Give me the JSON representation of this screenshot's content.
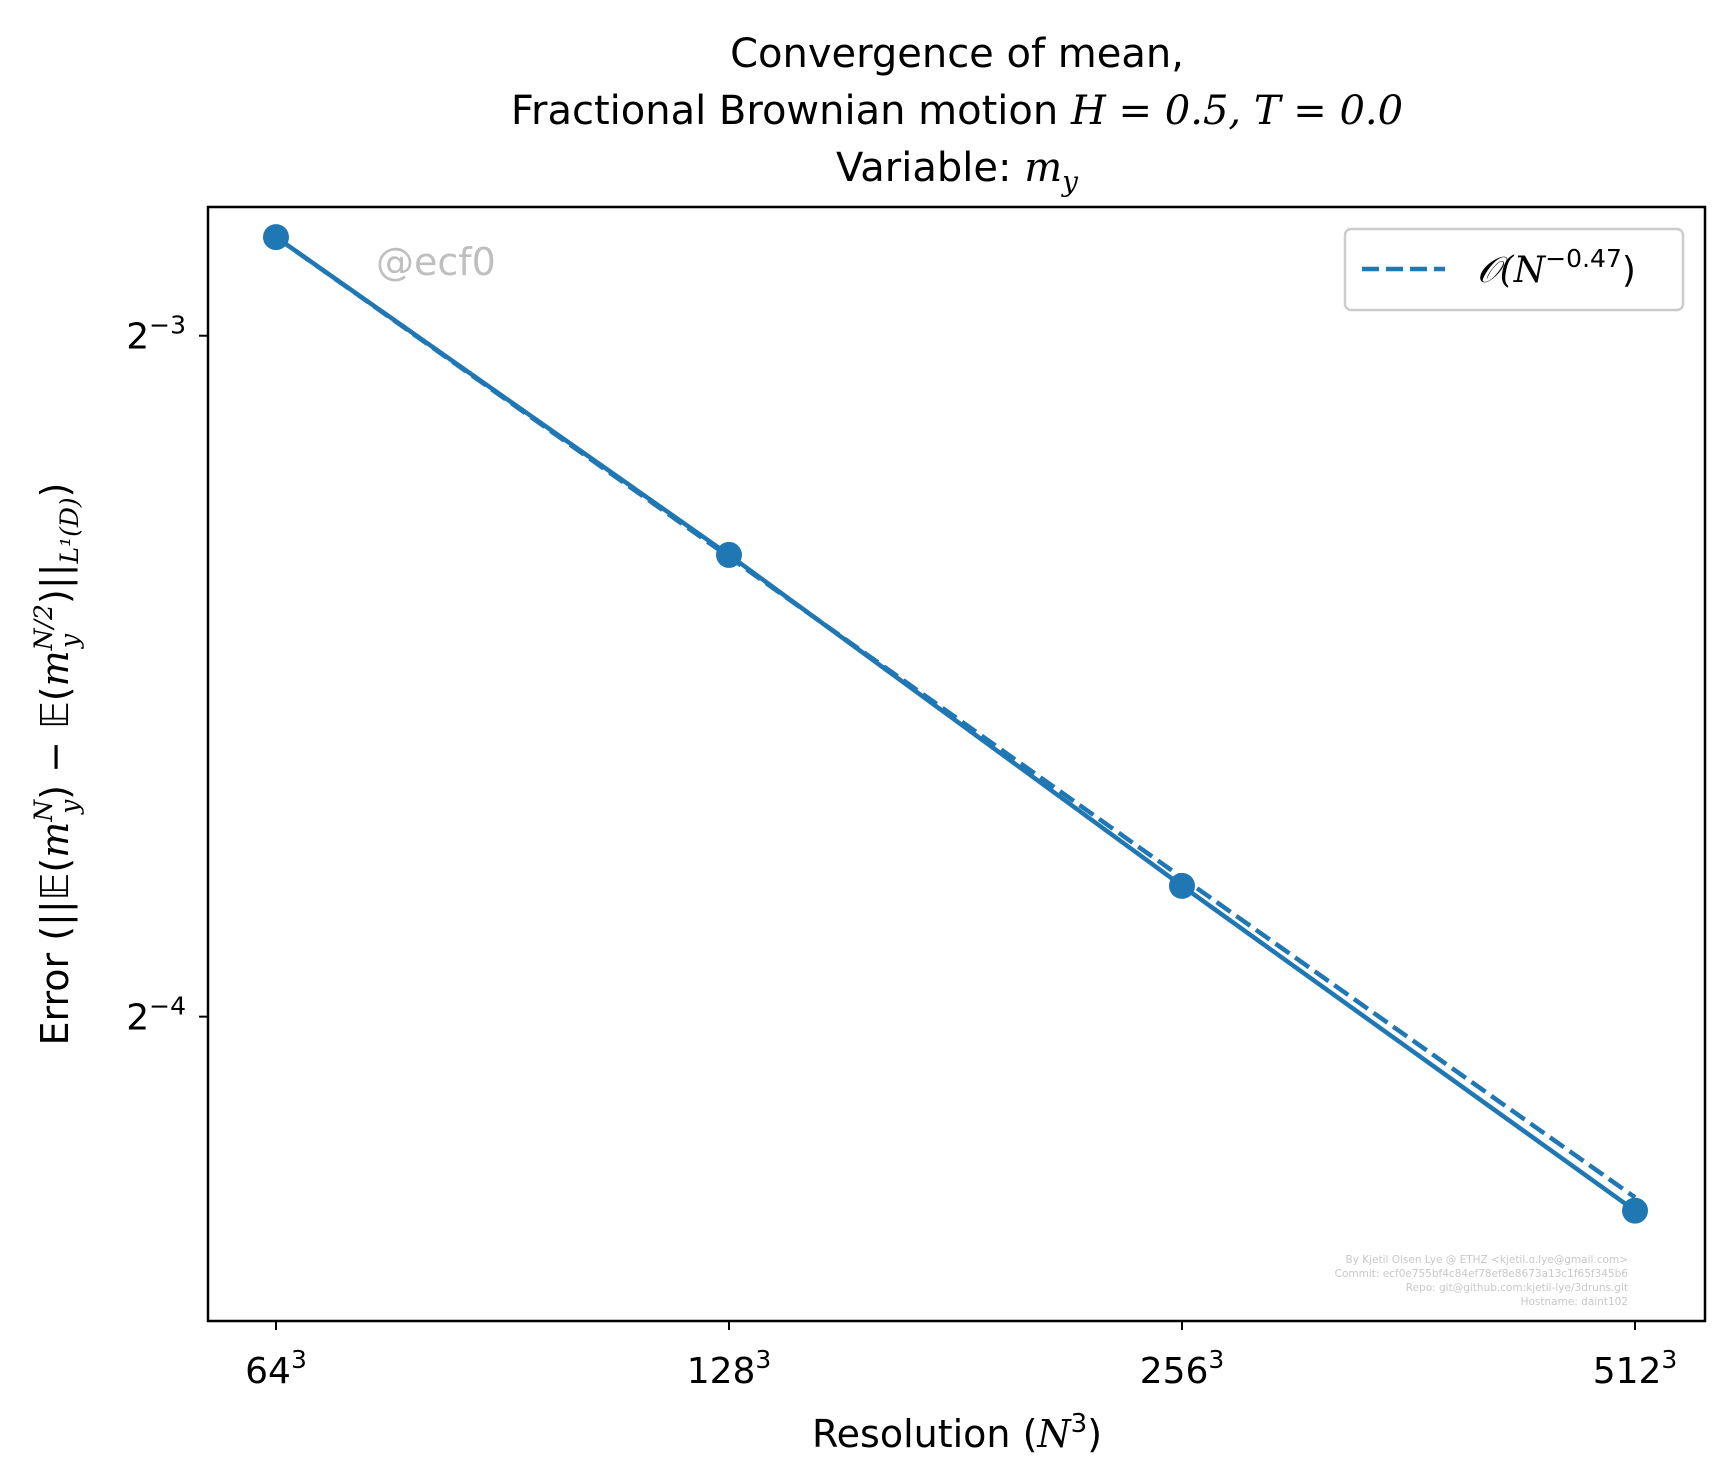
{
  "chart_data": {
    "type": "line",
    "title": {
      "line1": "Convergence of mean,",
      "line2_prefix": "Fractional Brownian motion ",
      "line2_math": "H = 0.5, T = 0.0",
      "line3_prefix": "Variable: ",
      "line3_math": "m",
      "line3_sub": "y"
    },
    "xlabel": {
      "prefix": "Resolution (",
      "var": "N",
      "sup": "3",
      "suffix": ")"
    },
    "ylabel": {
      "prefix": "Error (||",
      "bb": "𝔼",
      "open": "(",
      "m": "m",
      "sub": "y",
      "supN": "N",
      "mid": ") − ",
      "supN2": "N/2",
      "close": ")||",
      "norm_sub": "L¹(D)",
      "suffix": ")"
    },
    "x": [
      64,
      128,
      256,
      512
    ],
    "xscale": "log2",
    "x_tick_labels": [
      {
        "base": "64",
        "sup": "3"
      },
      {
        "base": "128",
        "sup": "3"
      },
      {
        "base": "256",
        "sup": "3"
      },
      {
        "base": "512",
        "sup": "3"
      }
    ],
    "yscale": "log2",
    "y_ticks": [
      {
        "value": 0.125,
        "base": "2",
        "sup": "−3"
      },
      {
        "value": 0.0625,
        "base": "2",
        "sup": "−4"
      }
    ],
    "ylim": [
      0.04585,
      0.1425
    ],
    "series": [
      {
        "name": "",
        "style": "solid",
        "marker": "circle",
        "values": [
          0.1382,
          0.1,
          0.0714,
          0.0513
        ]
      },
      {
        "name": "𝒪(N^{−0.47})",
        "style": "dashed",
        "marker": "none",
        "values": [
          0.1382,
          0.0998,
          0.072,
          0.052
        ]
      }
    ],
    "legend": {
      "placement": "top-right",
      "entries": [
        {
          "prefix": "𝒪(N",
          "sup": "−0.47",
          "suffix": ")"
        }
      ]
    },
    "watermark": "@ecf0",
    "footer": [
      "By Kjetil Olsen Lye @ ETHZ <kjetil.o.lye@gmail.com>",
      "Commit: ecf0e755bf4c84ef78ef8e8673a13c1f65f345b6",
      "Repo: git@github.com:kjetil-lye/3druns.git",
      "Hostname: daint102"
    ],
    "grid": false,
    "colors": {
      "line": "#1f77b4",
      "axes": "#000000",
      "watermark": "#bfbfbf",
      "footer": "#c8c8c8",
      "legend_border": "#cccccc"
    }
  }
}
